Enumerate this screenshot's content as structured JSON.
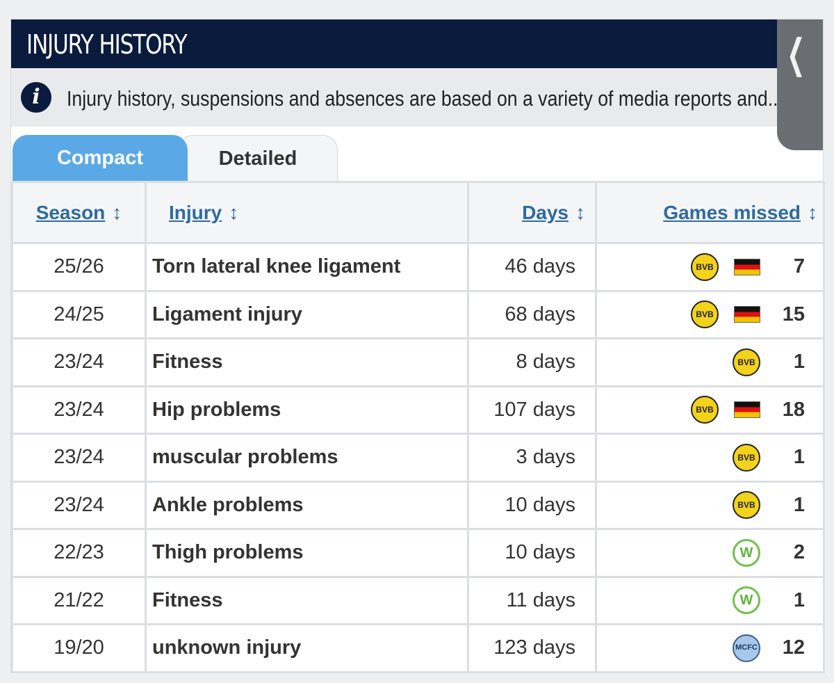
{
  "header": {
    "title": "INJURY HISTORY"
  },
  "info": {
    "icon": "info-icon",
    "icon_glyph": "i",
    "text": "Injury history, suspensions and absences are based on a variety of media reports and..."
  },
  "tabs": [
    {
      "label": "Compact",
      "active": true
    },
    {
      "label": "Detailed",
      "active": false
    }
  ],
  "columns": [
    {
      "label": "Season",
      "sort_icon": "↕"
    },
    {
      "label": "Injury",
      "sort_icon": "↕"
    },
    {
      "label": "Days",
      "sort_icon": "↕"
    },
    {
      "label": "Games missed",
      "sort_icon": "↕"
    }
  ],
  "rows": [
    {
      "season": "25/26",
      "injury": "Torn lateral knee ligament",
      "days": "46 days",
      "clubs": [
        "bvb",
        "germany"
      ],
      "games": "7"
    },
    {
      "season": "24/25",
      "injury": "Ligament injury",
      "days": "68 days",
      "clubs": [
        "bvb",
        "germany"
      ],
      "games": "15"
    },
    {
      "season": "23/24",
      "injury": "Fitness",
      "days": "8 days",
      "clubs": [
        "bvb"
      ],
      "games": "1"
    },
    {
      "season": "23/24",
      "injury": "Hip problems",
      "days": "107 days",
      "clubs": [
        "bvb",
        "germany"
      ],
      "games": "18"
    },
    {
      "season": "23/24",
      "injury": "muscular problems",
      "days": "3 days",
      "clubs": [
        "bvb"
      ],
      "games": "1"
    },
    {
      "season": "23/24",
      "injury": "Ankle problems",
      "days": "10 days",
      "clubs": [
        "bvb"
      ],
      "games": "1"
    },
    {
      "season": "22/23",
      "injury": "Thigh problems",
      "days": "10 days",
      "clubs": [
        "wolfsburg"
      ],
      "games": "2"
    },
    {
      "season": "21/22",
      "injury": "Fitness",
      "days": "11 days",
      "clubs": [
        "wolfsburg"
      ],
      "games": "1"
    },
    {
      "season": "19/20",
      "injury": "unknown injury",
      "days": "123 days",
      "clubs": [
        "man-city"
      ],
      "games": "12"
    }
  ],
  "side_tab": {
    "icon": "chevron-left-icon",
    "glyph": "❮"
  },
  "colors": {
    "header_bg": "#0b1b3d",
    "tab_active": "#5aa9e6",
    "link_blue": "#2e6aa0",
    "bvb_yellow": "#f3d21a",
    "wolfsburg_green": "#6cc24a",
    "city_blue": "#a7c8ea"
  }
}
